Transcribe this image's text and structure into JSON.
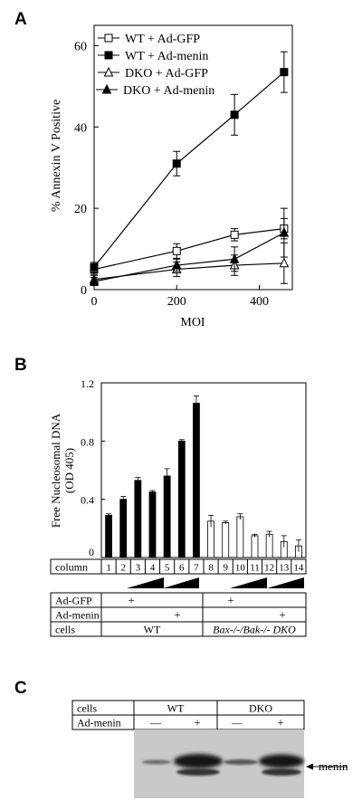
{
  "panels": {
    "a": "A",
    "b": "B",
    "c": "C"
  },
  "chart_data": [
    {
      "type": "scatter",
      "title": "",
      "xlabel": "MOI",
      "ylabel": "% Annexin V Positive",
      "xlim": [
        0,
        480
      ],
      "ylim": [
        0,
        65
      ],
      "x_ticks": [
        0,
        200,
        400
      ],
      "y_ticks": [
        0,
        20,
        40,
        60
      ],
      "legend_position": "top-left",
      "series": [
        {
          "name": "WT + Ad-GFP",
          "marker": "open-square",
          "color": "#000000",
          "x": [
            0,
            200,
            340,
            460
          ],
          "y": [
            5,
            9.5,
            13.5,
            15
          ],
          "err": [
            1.2,
            1.8,
            1.5,
            2.5
          ]
        },
        {
          "name": "WT + Ad-menin",
          "marker": "filled-square",
          "color": "#000000",
          "x": [
            0,
            200,
            340,
            460
          ],
          "y": [
            5.5,
            31,
            43,
            53.5
          ],
          "err": [
            1.2,
            3,
            5,
            5
          ]
        },
        {
          "name": "DKO + Ad-GFP",
          "marker": "open-triangle",
          "color": "#000000",
          "x": [
            0,
            200,
            340,
            460
          ],
          "y": [
            2.5,
            5,
            6,
            6.5
          ],
          "err": [
            1,
            1.8,
            2.5,
            5
          ]
        },
        {
          "name": "DKO + Ad-menin",
          "marker": "filled-triangle",
          "color": "#000000",
          "x": [
            0,
            200,
            340,
            460
          ],
          "y": [
            2,
            6,
            7.5,
            14
          ],
          "err": [
            1,
            1.5,
            3,
            6
          ]
        }
      ]
    },
    {
      "type": "bar",
      "title": "",
      "ylabel_line1": "Free Nucleosomal DNA",
      "ylabel_line2": "(OD 405)",
      "ylim": [
        0,
        1.2
      ],
      "y_ticks": [
        0,
        0.4,
        0.8,
        1.2
      ],
      "y_tick_labels": [
        "0",
        "0.4",
        "0.8",
        "1.2"
      ],
      "categories": [
        "1",
        "2",
        "3",
        "4",
        "5",
        "6",
        "7",
        "8",
        "9",
        "10",
        "11",
        "12",
        "13",
        "14"
      ],
      "values": [
        0.29,
        0.4,
        0.53,
        0.45,
        0.56,
        0.8,
        1.06,
        0.25,
        0.24,
        0.28,
        0.15,
        0.16,
        0.11,
        0.08
      ],
      "errors": [
        0.01,
        0.02,
        0.02,
        0.01,
        0.05,
        0.01,
        0.05,
        0.04,
        0.01,
        0.02,
        0.01,
        0.02,
        0.04,
        0.04
      ],
      "fill": [
        "black",
        "black",
        "black",
        "black",
        "black",
        "black",
        "black",
        "white",
        "white",
        "white",
        "white",
        "white",
        "white",
        "white"
      ]
    }
  ],
  "panel_b_table": {
    "column_label": "column",
    "adgfp_label": "Ad-GFP",
    "admenin_label": "Ad-menin",
    "cells_label": "cells",
    "plus": "+",
    "wt": "WT",
    "dko": "Bax-/-/Bak-/- DKO"
  },
  "panel_c": {
    "cells_label": "cells",
    "admenin_label": "Ad-menin",
    "wt": "WT",
    "dko": "DKO",
    "minus": "—",
    "plus": "+",
    "band_label": "menin"
  }
}
